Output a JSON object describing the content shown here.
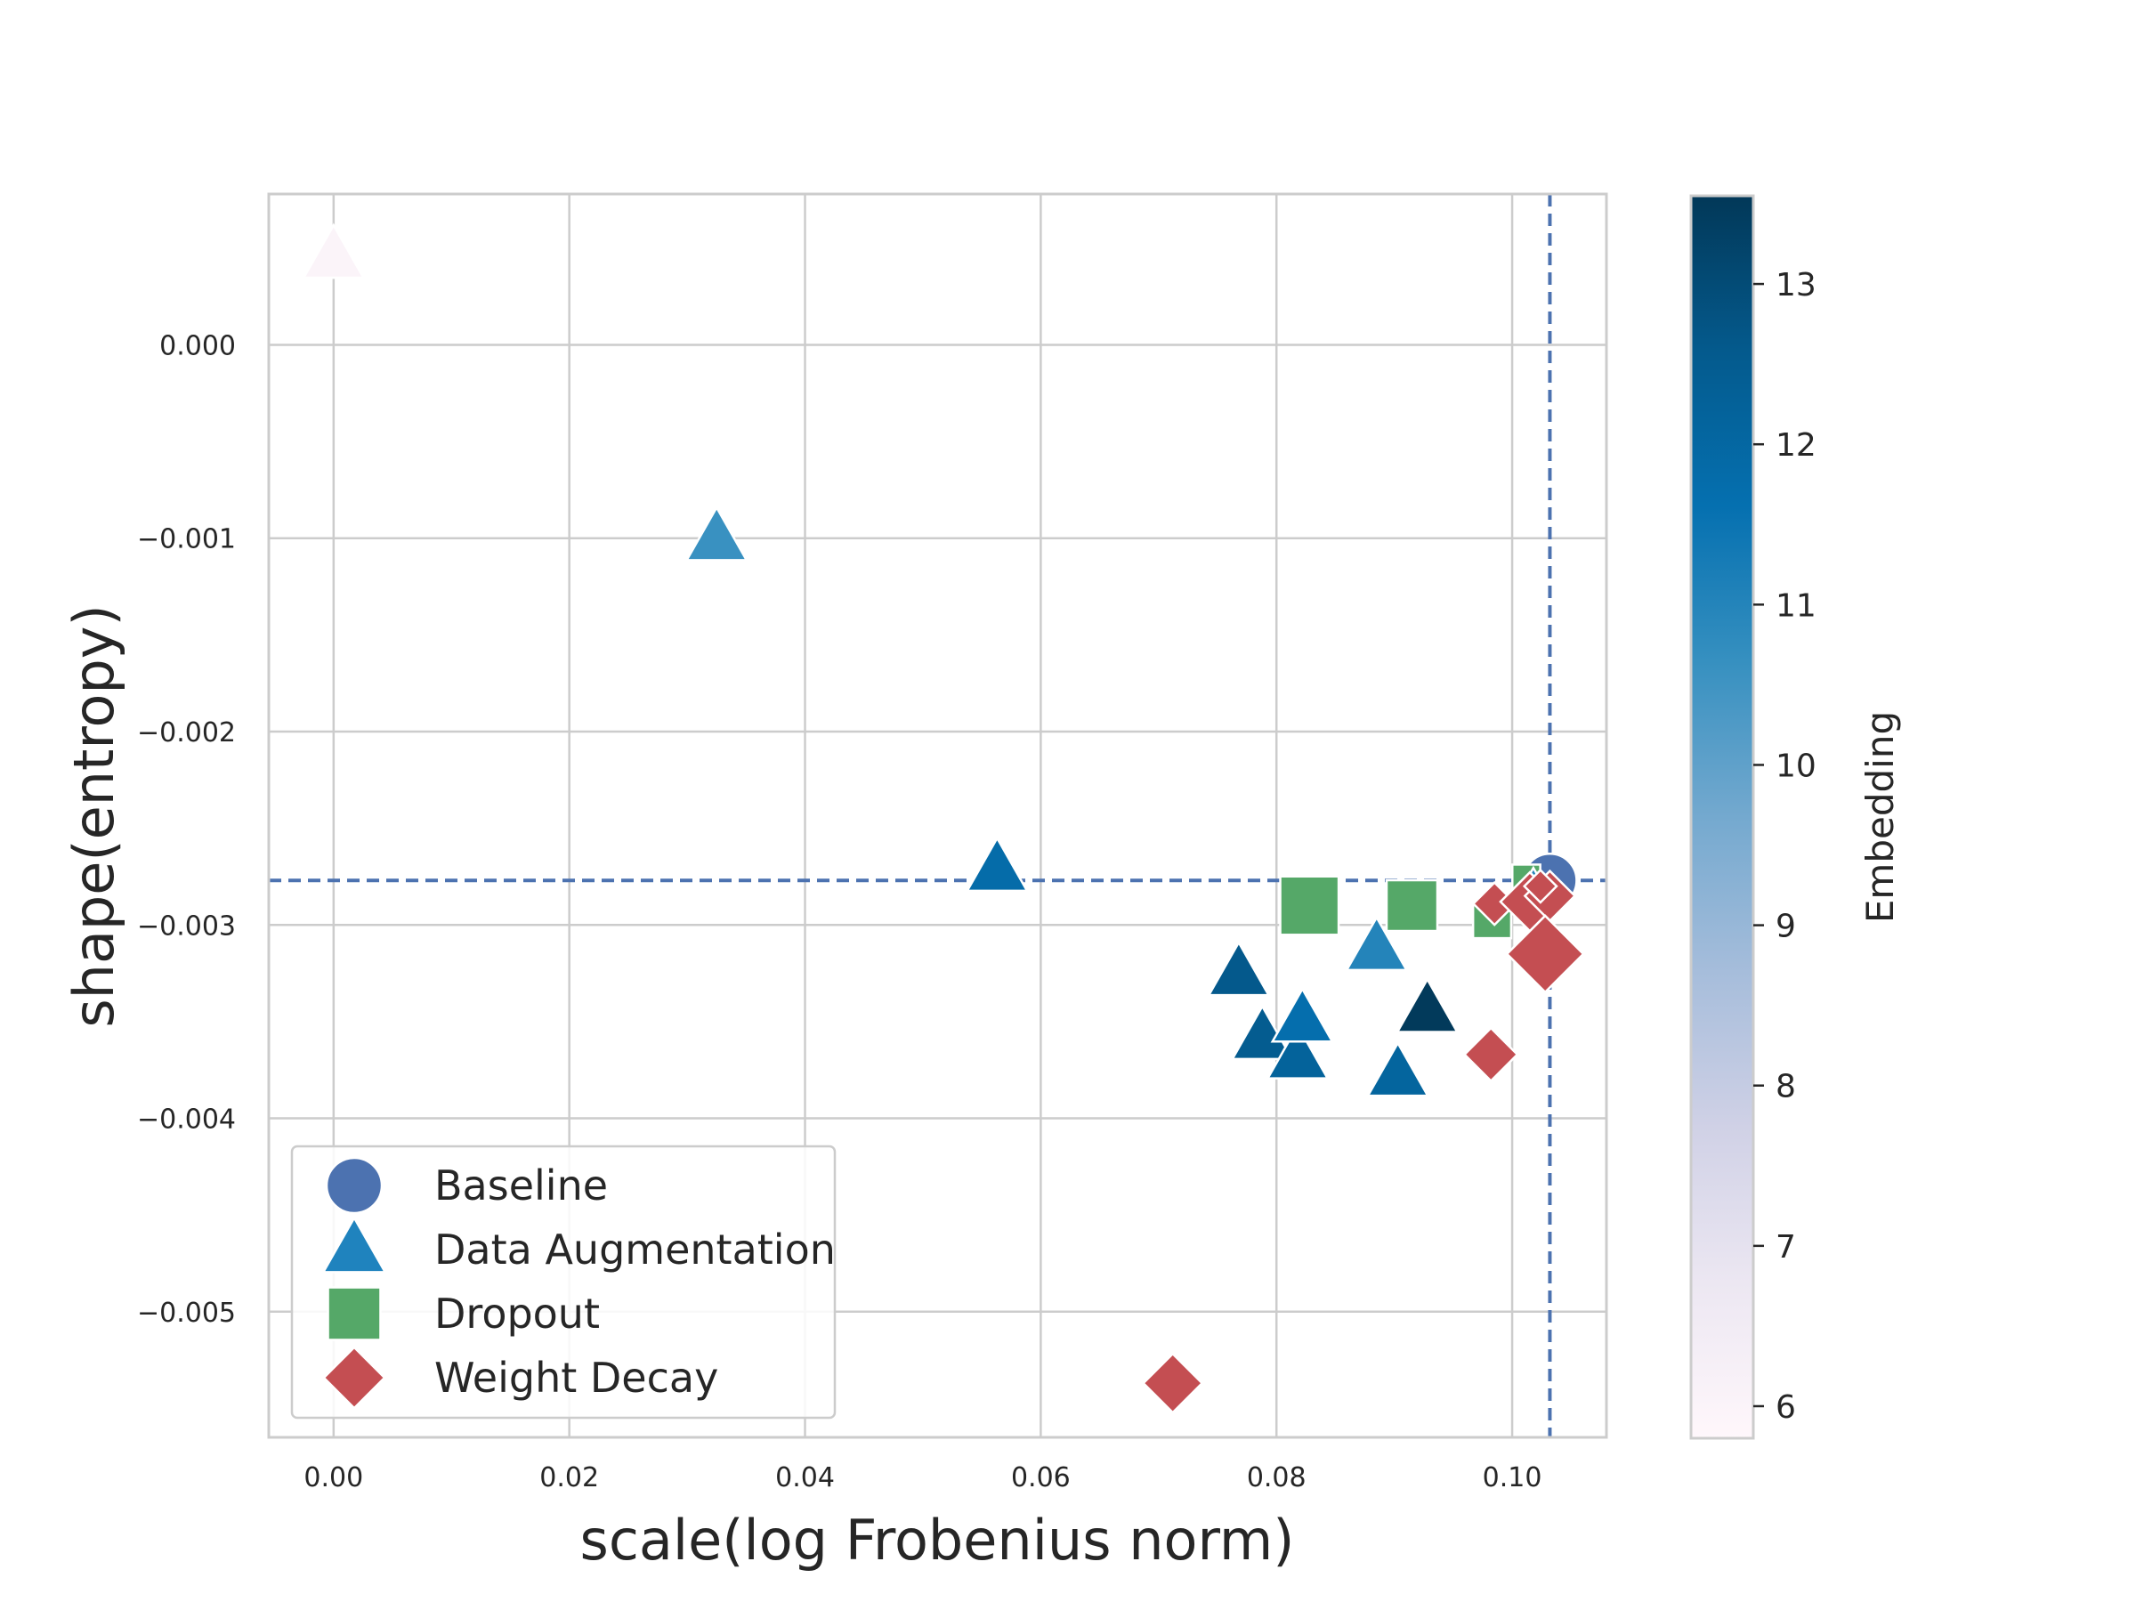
{
  "chart_data": {
    "type": "scatter",
    "title": "",
    "xlabel": "scale(log Frobenius norm)",
    "ylabel": "shape(entropy)",
    "xlim": [
      -0.0055,
      0.108
    ],
    "ylim": [
      -0.00565,
      0.00078
    ],
    "x_ticks": [
      0.0,
      0.02,
      0.04,
      0.06,
      0.08,
      0.1
    ],
    "x_tick_labels": [
      "0.00",
      "0.02",
      "0.04",
      "0.06",
      "0.08",
      "0.10"
    ],
    "y_ticks": [
      0.0,
      -0.001,
      -0.002,
      -0.003,
      -0.004,
      -0.005
    ],
    "y_tick_labels": [
      "0.000",
      "−0.001",
      "−0.002",
      "−0.003",
      "−0.004",
      "−0.005"
    ],
    "grid": true,
    "reference_lines": {
      "x": 0.1032,
      "y": -0.00277,
      "color": "#4c72b0",
      "style": "dashed"
    },
    "legend": {
      "location": "lower-left",
      "entries": [
        {
          "label": "Baseline",
          "marker": "circle",
          "color": "#4c72b0"
        },
        {
          "label": "Data Augmentation",
          "marker": "triangle",
          "color": "#1f83be"
        },
        {
          "label": "Dropout",
          "marker": "square",
          "color": "#55a868"
        },
        {
          "label": "Weight Decay",
          "marker": "diamond",
          "color": "#c44e52"
        }
      ]
    },
    "colorbar": {
      "label": "Embedding",
      "range": [
        5.8,
        13.55
      ],
      "ticks": [
        6,
        7,
        8,
        9,
        10,
        11,
        12,
        13
      ],
      "tick_labels": [
        "6",
        "7",
        "8",
        "9",
        "10",
        "11",
        "12",
        "13"
      ],
      "colormap": [
        "#fff7fb",
        "#ece7f2",
        "#d0d1e6",
        "#a6bddb",
        "#74a9cf",
        "#3690c0",
        "#0570b0",
        "#045a8d",
        "#023858"
      ]
    },
    "series": [
      {
        "name": "Baseline",
        "marker": "circle",
        "color": "#4c72b0",
        "points": [
          {
            "x": 0.1032,
            "y": -0.00277,
            "size": 1.0
          }
        ]
      },
      {
        "name": "Data Augmentation",
        "marker": "triangle",
        "points": [
          {
            "x": 0.0,
            "y": 0.00046,
            "embedding": 6.0,
            "size": 1.0
          },
          {
            "x": 0.0325,
            "y": -0.001,
            "embedding": 10.6,
            "size": 1.0
          },
          {
            "x": 0.0563,
            "y": -0.00271,
            "embedding": 11.8,
            "size": 1.0
          },
          {
            "x": 0.0768,
            "y": -0.00325,
            "embedding": 12.6,
            "size": 1.0
          },
          {
            "x": 0.0788,
            "y": -0.00358,
            "embedding": 12.5,
            "size": 1.0
          },
          {
            "x": 0.0818,
            "y": -0.00368,
            "embedding": 12.2,
            "size": 1.0
          },
          {
            "x": 0.0822,
            "y": -0.00349,
            "embedding": 11.7,
            "size": 1.0
          },
          {
            "x": 0.0885,
            "y": -0.00312,
            "embedding": 11.0,
            "size": 1.0
          },
          {
            "x": 0.0903,
            "y": -0.00377,
            "embedding": 12.1,
            "size": 1.0
          },
          {
            "x": 0.0928,
            "y": -0.00344,
            "embedding": 13.5,
            "size": 1.0
          },
          {
            "x": 0.1018,
            "y": -0.0028,
            "embedding": 11.0,
            "size": 0.6
          }
        ]
      },
      {
        "name": "Dropout",
        "marker": "square",
        "color": "#55a868",
        "points": [
          {
            "x": 0.0828,
            "y": -0.0029,
            "size": 1.15
          },
          {
            "x": 0.0915,
            "y": -0.0029,
            "size": 1.0
          },
          {
            "x": 0.0983,
            "y": -0.00297,
            "size": 0.75
          },
          {
            "x": 0.1012,
            "y": -0.00276,
            "size": 0.55
          }
        ]
      },
      {
        "name": "Weight Decay",
        "marker": "diamond",
        "color": "#c44e52",
        "points": [
          {
            "x": 0.0712,
            "y": -0.00537,
            "size": 1.0
          },
          {
            "x": 0.0982,
            "y": -0.00367,
            "size": 0.9
          },
          {
            "x": 0.0985,
            "y": -0.00289,
            "size": 0.72
          },
          {
            "x": 0.1015,
            "y": -0.00288,
            "size": 1.0
          },
          {
            "x": 0.1032,
            "y": -0.00285,
            "size": 0.85
          },
          {
            "x": 0.1028,
            "y": -0.00315,
            "size": 1.3
          },
          {
            "x": 0.1024,
            "y": -0.0028,
            "size": 0.55
          }
        ]
      }
    ]
  }
}
